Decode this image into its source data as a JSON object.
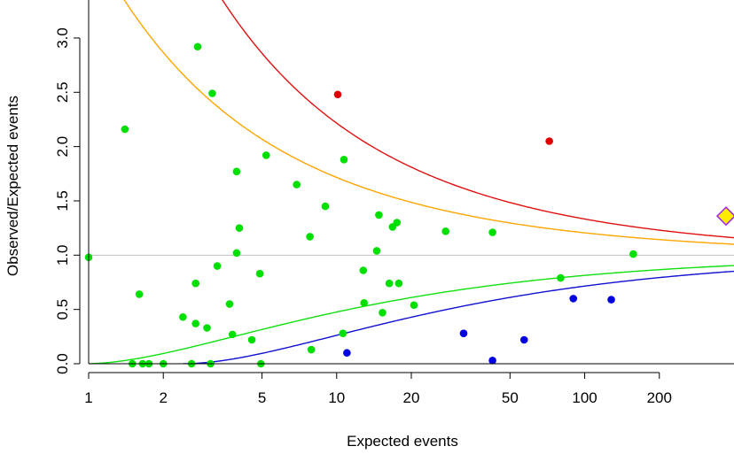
{
  "chart_data": {
    "type": "scatter",
    "title": "",
    "xlabel": "Expected events",
    "ylabel": "Observed/Expected events",
    "x_scale": "log",
    "xlim": [
      1,
      400
    ],
    "ylim": [
      0,
      3.35
    ],
    "x_ticks": [
      {
        "value": 1,
        "label": "1"
      },
      {
        "value": 2,
        "label": "2"
      },
      {
        "value": 5,
        "label": "5"
      },
      {
        "value": 10,
        "label": "10"
      },
      {
        "value": 20,
        "label": "20"
      },
      {
        "value": 50,
        "label": "50"
      },
      {
        "value": 100,
        "label": "100"
      },
      {
        "value": 200,
        "label": "200"
      }
    ],
    "y_ticks": [
      {
        "value": 0,
        "label": "0.0"
      },
      {
        "value": 0.5,
        "label": "0.5"
      },
      {
        "value": 1.0,
        "label": "1.0"
      },
      {
        "value": 1.5,
        "label": "1.5"
      },
      {
        "value": 2.0,
        "label": "2.0"
      },
      {
        "value": 2.5,
        "label": "2.5"
      },
      {
        "value": 3.0,
        "label": "3.0"
      }
    ],
    "grid": false,
    "reference_line": {
      "y": 1.0,
      "color": "#bebebe"
    },
    "colors": {
      "green": "#00e000",
      "red": "#e00000",
      "blue": "#0000e0",
      "upper_outer": "#e01010",
      "upper_inner": "#ffa500",
      "lower_inner": "#10e010",
      "lower_outer": "#1010d0",
      "highlight_fill": "#ffeb00",
      "highlight_stroke": "#a020f0"
    },
    "limits": [
      {
        "key": "upper_outer",
        "z": 3.09,
        "side": "upper"
      },
      {
        "key": "upper_inner",
        "z": 1.96,
        "side": "upper"
      },
      {
        "key": "lower_inner",
        "z": 1.96,
        "side": "lower"
      },
      {
        "key": "lower_outer",
        "z": 3.09,
        "side": "lower"
      }
    ],
    "series": [
      {
        "color_key": "green",
        "points": [
          [
            1.0,
            0.98
          ],
          [
            1.4,
            2.16
          ],
          [
            1.5,
            0.0
          ],
          [
            1.6,
            0.64
          ],
          [
            1.65,
            0.0
          ],
          [
            1.75,
            0.0
          ],
          [
            2.0,
            0.0
          ],
          [
            2.4,
            0.43
          ],
          [
            2.6,
            0.0
          ],
          [
            2.7,
            0.74
          ],
          [
            2.7,
            0.37
          ],
          [
            2.75,
            2.92
          ],
          [
            3.0,
            0.33
          ],
          [
            3.1,
            0.0
          ],
          [
            3.15,
            2.49
          ],
          [
            3.3,
            0.9
          ],
          [
            3.7,
            0.55
          ],
          [
            3.8,
            0.27
          ],
          [
            3.95,
            1.77
          ],
          [
            3.95,
            1.02
          ],
          [
            4.05,
            1.25
          ],
          [
            4.55,
            0.22
          ],
          [
            4.9,
            0.83
          ],
          [
            4.95,
            0.0
          ],
          [
            5.2,
            1.92
          ],
          [
            6.9,
            1.65
          ],
          [
            7.8,
            1.17
          ],
          [
            7.9,
            0.13
          ],
          [
            9.0,
            1.45
          ],
          [
            10.6,
            0.28
          ],
          [
            10.7,
            1.88
          ],
          [
            12.8,
            0.86
          ],
          [
            12.9,
            0.56
          ],
          [
            14.5,
            1.04
          ],
          [
            14.8,
            1.37
          ],
          [
            15.3,
            0.47
          ],
          [
            16.3,
            0.74
          ],
          [
            16.8,
            1.26
          ],
          [
            17.5,
            1.3
          ],
          [
            17.8,
            0.74
          ],
          [
            20.5,
            0.54
          ],
          [
            27.5,
            1.22
          ],
          [
            42.5,
            1.21
          ],
          [
            80,
            0.79
          ],
          [
            157,
            1.01
          ]
        ]
      },
      {
        "color_key": "red",
        "points": [
          [
            10.1,
            2.48
          ],
          [
            72,
            2.05
          ]
        ]
      },
      {
        "color_key": "blue",
        "points": [
          [
            11.0,
            0.1
          ],
          [
            32.5,
            0.28
          ],
          [
            42.5,
            0.03
          ],
          [
            57,
            0.22
          ],
          [
            90,
            0.6
          ],
          [
            128,
            0.59
          ]
        ]
      }
    ],
    "highlight_point": {
      "x": 400,
      "y": 1.36,
      "shape": "diamond"
    }
  }
}
